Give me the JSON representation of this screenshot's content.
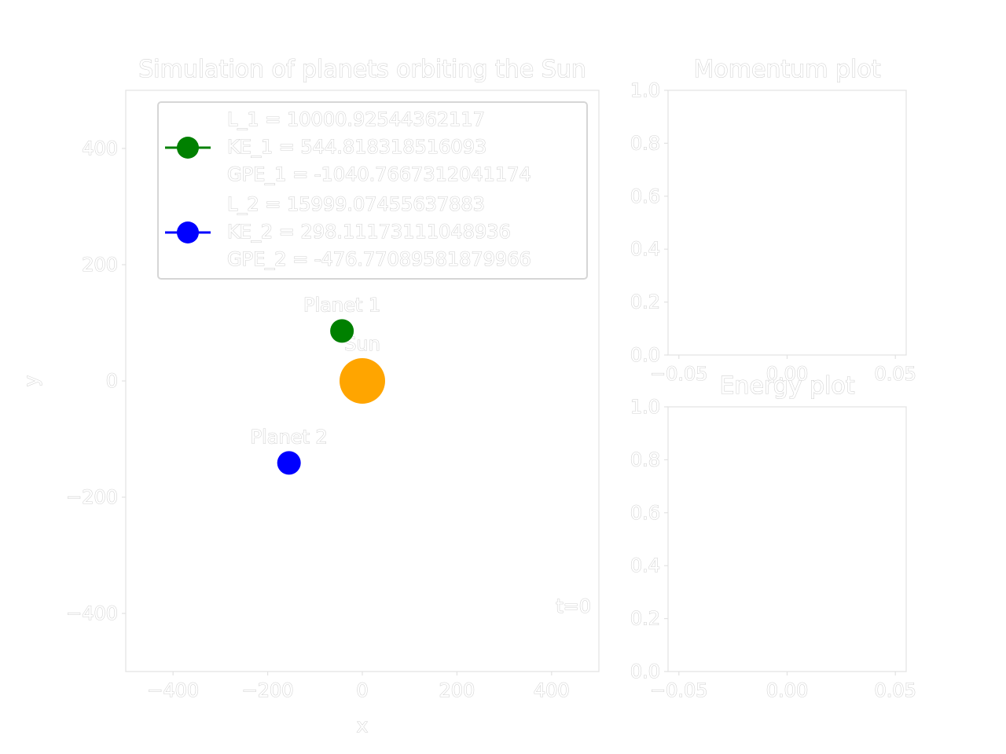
{
  "chart_data": [
    {
      "type": "scatter",
      "title": "Simulation of planets orbiting the Sun",
      "xlabel": "x",
      "ylabel": "y",
      "xlim": [
        -500,
        500
      ],
      "ylim": [
        -500,
        500
      ],
      "xticks": [
        "−400",
        "−200",
        "0",
        "200",
        "400"
      ],
      "xtick_values": [
        -400,
        -200,
        0,
        200,
        400
      ],
      "yticks": [
        "400",
        "200",
        "0",
        "−200",
        "−400"
      ],
      "ytick_values": [
        400,
        200,
        0,
        -200,
        -400
      ],
      "grid": false,
      "legend_placement": "upper-center",
      "bodies": [
        {
          "label": "Sun",
          "x": 0,
          "y": 0,
          "color": "#FFA500",
          "size": "large"
        },
        {
          "label": "Planet 1",
          "x": -43,
          "y": 86,
          "color": "#008000",
          "size": "small"
        },
        {
          "label": "Planet 2",
          "x": -155,
          "y": -141,
          "color": "#0000FF",
          "size": "small"
        }
      ],
      "legend": [
        {
          "color": "#008000",
          "lines": [
            "L_1 = 10000.92544362117",
            "KE_1 = 544.818318516093",
            "GPE_1 = -1040.7667312041174"
          ]
        },
        {
          "color": "#0000FF",
          "lines": [
            "L_2 = 15999.07455637883",
            "KE_2 = 298.11173111048936",
            "GPE_2 = -476.77089581879966"
          ]
        }
      ],
      "annotation": "t=0"
    },
    {
      "type": "line",
      "title": "Momentum plot",
      "xlim": [
        -0.055,
        0.055
      ],
      "ylim": [
        0,
        1
      ],
      "xticks": [
        "−0.05",
        "0.00",
        "0.05"
      ],
      "xtick_values": [
        -0.05,
        0,
        0.05
      ],
      "yticks": [
        "0.0",
        "0.2",
        "0.4",
        "0.6",
        "0.8",
        "1.0"
      ],
      "ytick_values": [
        0,
        0.2,
        0.4,
        0.6,
        0.8,
        1.0
      ],
      "series": []
    },
    {
      "type": "line",
      "title": "Energy plot",
      "xlim": [
        -0.055,
        0.055
      ],
      "ylim": [
        0,
        1
      ],
      "xticks": [
        "−0.05",
        "0.00",
        "0.05"
      ],
      "xtick_values": [
        -0.05,
        0,
        0.05
      ],
      "yticks": [
        "0.0",
        "0.2",
        "0.4",
        "0.6",
        "0.8",
        "1.0"
      ],
      "ytick_values": [
        0,
        0.2,
        0.4,
        0.6,
        0.8,
        1.0
      ],
      "series": []
    }
  ]
}
